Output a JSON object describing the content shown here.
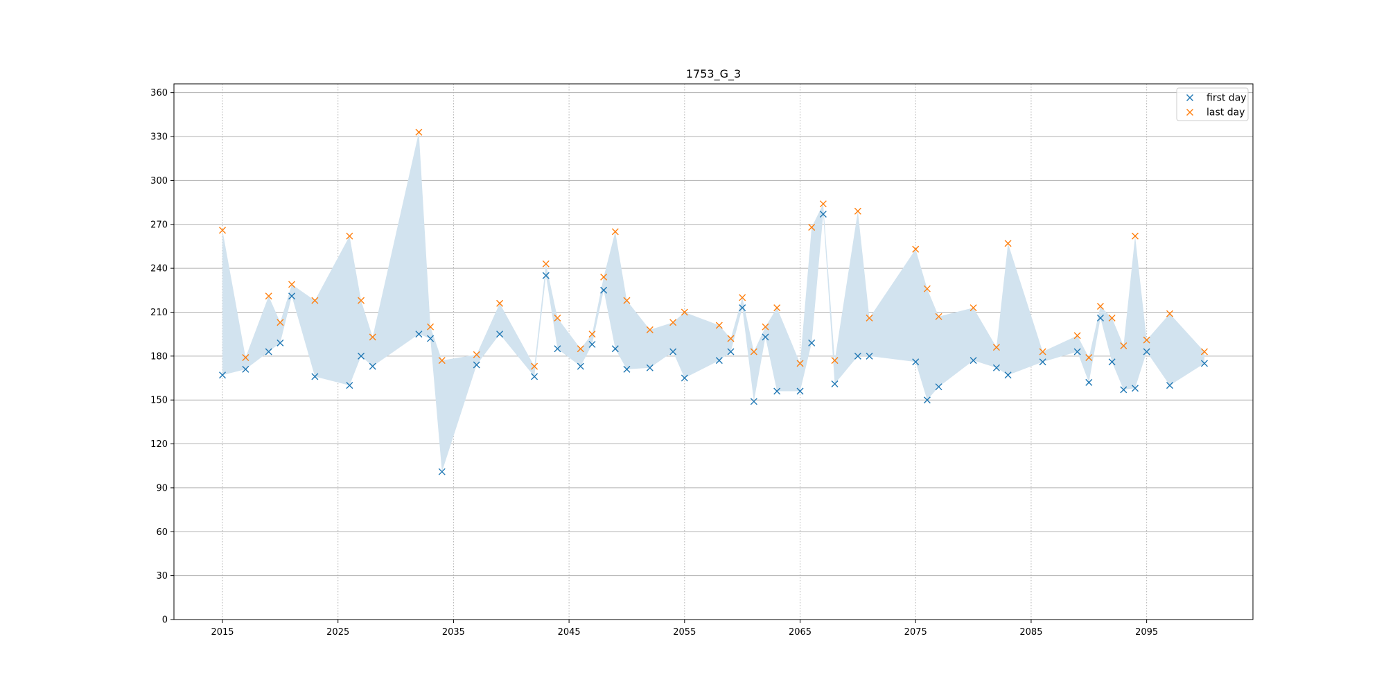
{
  "chart_data": {
    "type": "scatter",
    "title": "1753_G_3",
    "xlabel": "",
    "ylabel": "",
    "xlim": [
      2010.8,
      2104.2
    ],
    "ylim": [
      0,
      366
    ],
    "xticks": [
      2015,
      2025,
      2035,
      2045,
      2055,
      2065,
      2075,
      2085,
      2095
    ],
    "yticks": [
      0,
      30,
      60,
      90,
      120,
      150,
      180,
      210,
      240,
      270,
      300,
      330,
      360
    ],
    "grid": {
      "x": "dotted",
      "y": "solid"
    },
    "legend_position": "top-right",
    "fill_between": {
      "color": "#d2e3ef",
      "between": [
        "first day",
        "last day"
      ]
    },
    "x": [
      2015,
      2017,
      2019,
      2020,
      2021,
      2023,
      2026,
      2027,
      2028,
      2032,
      2033,
      2034,
      2037,
      2039,
      2042,
      2043,
      2044,
      2046,
      2047,
      2048,
      2049,
      2050,
      2052,
      2054,
      2055,
      2058,
      2059,
      2060,
      2061,
      2062,
      2063,
      2065,
      2066,
      2067,
      2068,
      2070,
      2071,
      2075,
      2076,
      2077,
      2080,
      2082,
      2083,
      2086,
      2089,
      2090,
      2091,
      2092,
      2093,
      2094,
      2095,
      2097,
      2100
    ],
    "series": [
      {
        "name": "first day",
        "color": "#1f77b4",
        "marker": "x",
        "values": [
          167,
          171,
          183,
          189,
          221,
          166,
          160,
          180,
          173,
          195,
          192,
          101,
          174,
          195,
          166,
          235,
          185,
          173,
          188,
          225,
          185,
          171,
          172,
          183,
          165,
          177,
          183,
          213,
          149,
          193,
          156,
          156,
          189,
          277,
          161,
          180,
          180,
          176,
          150,
          159,
          177,
          172,
          167,
          176,
          183,
          162,
          206,
          176,
          157,
          158,
          183,
          160,
          175
        ]
      },
      {
        "name": "last day",
        "color": "#ff7f0e",
        "marker": "x",
        "values": [
          266,
          179,
          221,
          203,
          229,
          218,
          262,
          218,
          193,
          333,
          200,
          177,
          181,
          216,
          173,
          243,
          206,
          185,
          195,
          234,
          265,
          218,
          198,
          203,
          210,
          201,
          192,
          220,
          183,
          200,
          213,
          175,
          268,
          284,
          177,
          279,
          206,
          253,
          226,
          207,
          213,
          186,
          257,
          183,
          194,
          179,
          214,
          206,
          187,
          262,
          191,
          209,
          183
        ]
      }
    ]
  }
}
